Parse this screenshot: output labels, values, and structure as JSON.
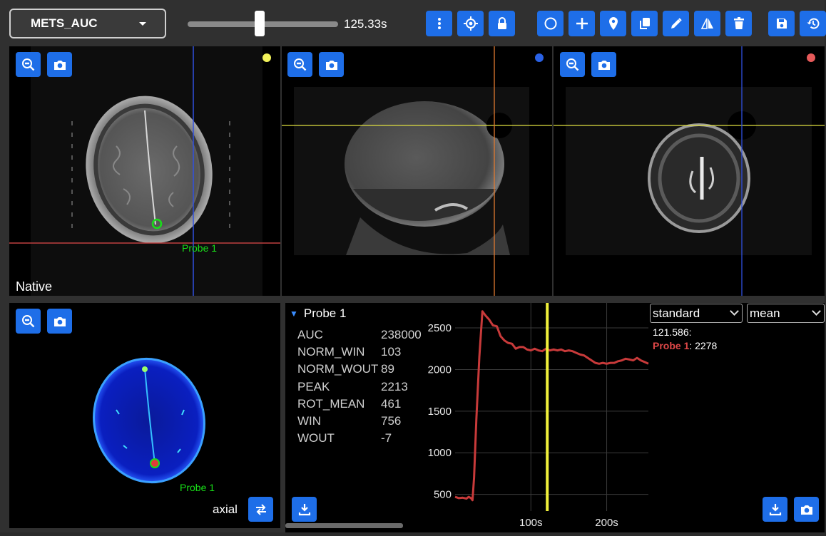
{
  "toolbar": {
    "dataset": "METS_AUC",
    "time": "125.33s",
    "slider_fraction": 0.48,
    "buttons": [
      "more-vert-icon",
      "crosshair-icon",
      "lock-icon",
      "circle-icon",
      "plus-icon",
      "pin-icon",
      "copy-icon",
      "pencil-icon",
      "flip-icon",
      "trash-icon",
      "save-icon",
      "history-icon"
    ]
  },
  "viewports": {
    "axial_native": {
      "caption": "Native",
      "probe_label": "Probe 1",
      "dot_color": "#f2f25a"
    },
    "sagittal": {
      "dot_color": "#2a62e6"
    },
    "coronal": {
      "dot_color": "#e65a5a"
    },
    "axial_map": {
      "caption": "axial",
      "probe_label": "Probe 1"
    }
  },
  "stats": {
    "probe_name": "Probe 1",
    "rows": [
      {
        "key": "AUC",
        "value": "238000"
      },
      {
        "key": "NORM_WIN",
        "value": "103"
      },
      {
        "key": "NORM_WOUT",
        "value": "89"
      },
      {
        "key": "PEAK",
        "value": "2213"
      },
      {
        "key": "ROT_MEAN",
        "value": "461"
      },
      {
        "key": "WIN",
        "value": "756"
      },
      {
        "key": "WOUT",
        "value": "-7"
      }
    ]
  },
  "selects": {
    "mode": "standard",
    "aggregate": "mean"
  },
  "legend": {
    "time": "121.586:",
    "probe": "Probe 1",
    "value": ": 2278"
  },
  "colors": {
    "accent": "#1e6ee8",
    "series": "#c83a3a",
    "cursor": "#f0f03a",
    "probe": "#18e018"
  },
  "chart_data": {
    "type": "line",
    "x": [
      0,
      5,
      10,
      15,
      18,
      21,
      23,
      25,
      28,
      32,
      36,
      40,
      45,
      50,
      55,
      60,
      65,
      70,
      75,
      80,
      85,
      90,
      95,
      100,
      105,
      110,
      115,
      120,
      125,
      130,
      135,
      140,
      145,
      150,
      155,
      160,
      165,
      170,
      175,
      180,
      185,
      190,
      195,
      200,
      205,
      210,
      215,
      220,
      225,
      230,
      235,
      240,
      245,
      250,
      255
    ],
    "series": [
      {
        "name": "Probe 1",
        "values": [
          470,
          455,
          460,
          450,
          470,
          455,
          430,
          700,
          1400,
          2150,
          2700,
          2650,
          2600,
          2530,
          2520,
          2400,
          2350,
          2320,
          2310,
          2250,
          2270,
          2270,
          2240,
          2230,
          2250,
          2230,
          2220,
          2250,
          2230,
          2240,
          2230,
          2240,
          2220,
          2230,
          2220,
          2200,
          2180,
          2170,
          2140,
          2110,
          2080,
          2070,
          2080,
          2070,
          2080,
          2080,
          2100,
          2110,
          2130,
          2120,
          2110,
          2140,
          2110,
          2090,
          2070
        ]
      }
    ],
    "xlabel": "",
    "ylabel": "",
    "xticks": [
      "100s",
      "200s"
    ],
    "yticks": [
      "500",
      "1000",
      "1500",
      "2000",
      "2500"
    ],
    "xlim": [
      0,
      255
    ],
    "ylim": [
      300,
      2800
    ],
    "cursor_x": 121.586,
    "grid": true,
    "legend": "none"
  }
}
